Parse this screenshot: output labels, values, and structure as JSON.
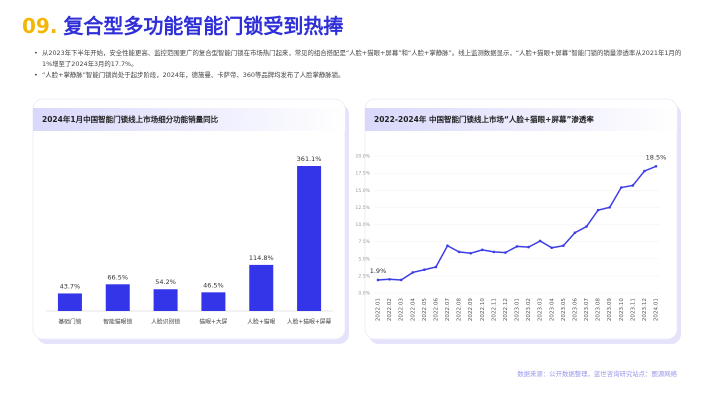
{
  "header": {
    "number": "09.",
    "title": "复合型多功能智能门锁受到热捧"
  },
  "bullets": [
    "从2023年下半年开始，安全性能更高、监控范围更广的复合型智能门锁在市场热门起来，常见的组合搭配是“人脸+猫眼+屏幕”和“人脸+掌静脉”。线上监测数据显示，“人脸+猫眼+屏幕”智能门锁的销量渗透率从2021年1月的1%增至了2024年3月的17.7%。",
    "“人脸+掌静脉”智能门锁尚处于起步阶段，2024年，德施曼、卡萨帝、360等品牌均发布了人脸掌静脉锁。"
  ],
  "source": "数据来源：公开数据整理，蓝世咨询研究站点：图源网络",
  "chart_data": [
    {
      "type": "bar",
      "title": "2024年1月中国智能门锁线上市场细分功能销量同比",
      "categories": [
        "基础门锁",
        "智能猫眼锁",
        "人脸识别锁",
        "猫眼+大屏",
        "人脸+猫眼",
        "人脸+猫眼+屏幕"
      ],
      "values": [
        43.7,
        66.5,
        54.2,
        46.5,
        114.8,
        361.1
      ],
      "value_labels": [
        "43.7%",
        "66.5%",
        "54.2%",
        "46.5%",
        "114.8%",
        "361.1%"
      ],
      "color": "#3434e8"
    },
    {
      "type": "line",
      "title": "2022-2024年 中国智能门锁线上市场“人脸+猫眼+屏幕”渗透率",
      "categories": [
        "2022.01",
        "2022.02",
        "2022.03",
        "2022.04",
        "2022.05",
        "2022.06",
        "2022.07",
        "2022.08",
        "2022.09",
        "2022.10",
        "2022.11",
        "2022.12",
        "2023.01",
        "2023.02",
        "2023.03",
        "2023.04",
        "2023.05",
        "2023.06",
        "2023.07",
        "2023.08",
        "2023.09",
        "2023.10",
        "2023.11",
        "2023.12",
        "2024.01"
      ],
      "values": [
        1.9,
        2.0,
        1.9,
        3.0,
        3.4,
        3.8,
        6.9,
        6.0,
        5.8,
        6.3,
        6.0,
        5.9,
        6.8,
        6.7,
        7.6,
        6.6,
        6.9,
        8.8,
        9.7,
        12.1,
        12.5,
        15.4,
        15.7,
        17.8,
        18.5
      ],
      "value_labels": [
        "1.9%",
        null,
        null,
        null,
        null,
        null,
        null,
        null,
        null,
        null,
        null,
        null,
        null,
        null,
        null,
        null,
        null,
        null,
        null,
        null,
        null,
        null,
        null,
        null,
        "18.5%"
      ],
      "color": "#3d3de6",
      "ylim": [
        0,
        20
      ],
      "yticks": [
        {
          "value": 0,
          "label": "0.0%"
        },
        {
          "value": 2.5,
          "label": "2.5%"
        },
        {
          "value": 5,
          "label": "5.0%"
        },
        {
          "value": 7.5,
          "label": "7.5%"
        },
        {
          "value": 10,
          "label": "10.0%"
        },
        {
          "value": 12.5,
          "label": "12.5%"
        },
        {
          "value": 15,
          "label": "15.0%"
        },
        {
          "value": 17.5,
          "label": "17.5%"
        },
        {
          "value": 20,
          "label": "20.0%"
        }
      ]
    }
  ]
}
